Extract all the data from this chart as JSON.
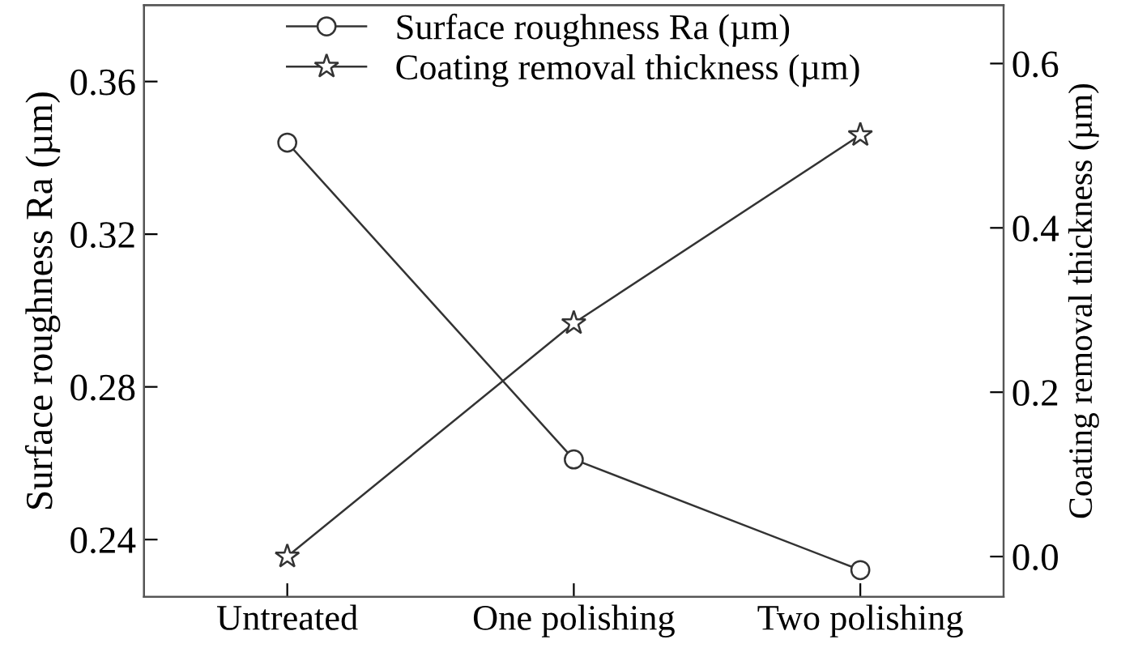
{
  "chart_data": {
    "type": "line",
    "categories": [
      "Untreated",
      "One polishing",
      "Two polishing"
    ],
    "ylabel": "Surface roughness Ra (µm)",
    "y2label": "Coating removal thickness (µm)",
    "series": [
      {
        "name": "Surface roughness Ra (µm)",
        "color": "#333333",
        "values": [
          0.344,
          0.261,
          0.232
        ],
        "marker": "circle"
      },
      {
        "name": "Coating removal thickness (µm)",
        "color": "#333333",
        "values": [
          0.0,
          0.284,
          0.513
        ],
        "marker": "star",
        "axis": "y2"
      }
    ],
    "ylim": [
      0.225,
      0.38
    ],
    "yticks": [
      0.24,
      0.28,
      0.32,
      0.36
    ],
    "y2lim": [
      -0.049,
      0.671
    ],
    "y2ticks": [
      {
        "value": 0.0,
        "label": "0.0"
      },
      {
        "value": 0.2,
        "label": "0.2"
      },
      {
        "value": 0.4,
        "label": "0.4"
      },
      {
        "value": 0.6,
        "label": "0.6"
      }
    ],
    "legend": "top",
    "grid": false,
    "line_style": "solid"
  }
}
